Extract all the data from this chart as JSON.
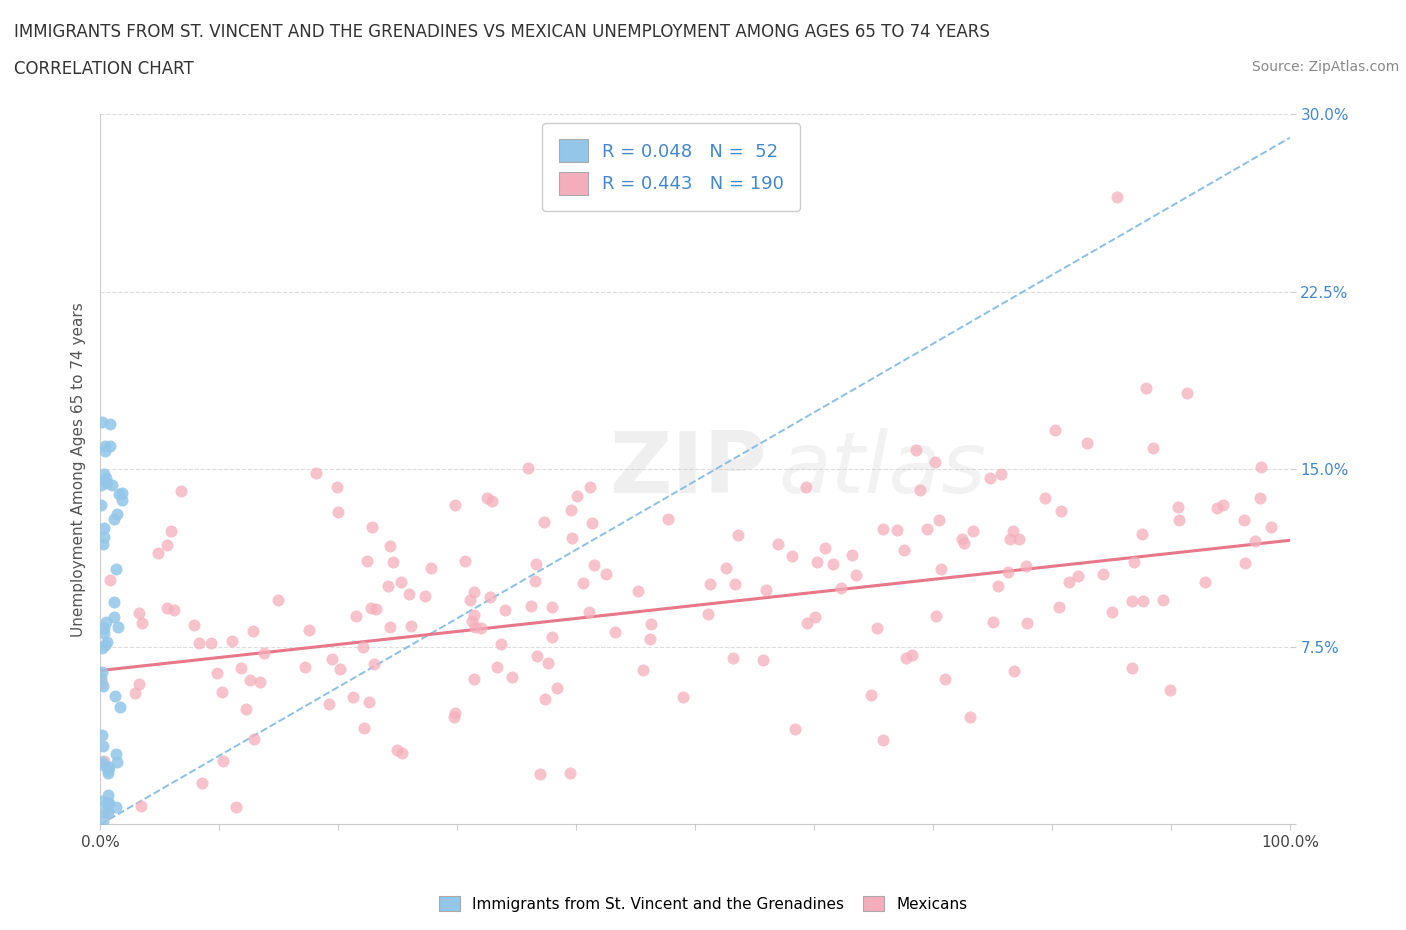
{
  "title_line1": "IMMIGRANTS FROM ST. VINCENT AND THE GRENADINES VS MEXICAN UNEMPLOYMENT AMONG AGES 65 TO 74 YEARS",
  "title_line2": "CORRELATION CHART",
  "source_text": "Source: ZipAtlas.com",
  "ylabel": "Unemployment Among Ages 65 to 74 years",
  "x_min": 0.0,
  "x_max": 1.0,
  "y_min": 0.0,
  "y_max": 0.3,
  "blue_R": 0.048,
  "blue_N": 52,
  "pink_R": 0.443,
  "pink_N": 190,
  "scatter_color_blue": "#93C6E8",
  "scatter_color_pink": "#F4AEBB",
  "trend_color_blue": "#7FB8E0",
  "trend_color_pink": "#E8778A",
  "legend_box_blue": "#93C6E8",
  "legend_box_pink": "#F4AEBB",
  "watermark_zip": "ZIP",
  "watermark_atlas": "atlas",
  "background_color": "#FFFFFF",
  "grid_color": "#DDDDDD",
  "pink_trend_intercept": 0.065,
  "pink_trend_slope": 0.055,
  "blue_trend_slope": 0.29
}
